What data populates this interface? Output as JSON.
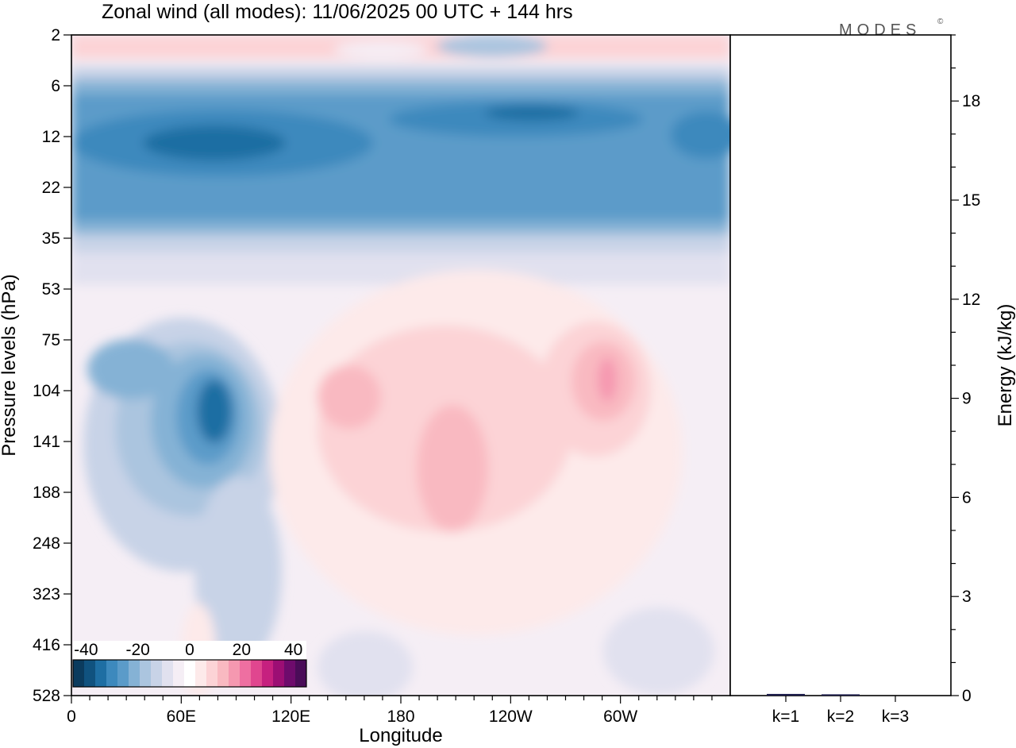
{
  "title": "Zonal wind (all modes):  11/06/2025  00 UTC  + 144 hrs",
  "logo": {
    "text": "MODES",
    "mark": "©"
  },
  "colors": {
    "frame": "#000000",
    "colorbar_bins": [
      "#0b3b5e",
      "#10527f",
      "#1e6ea3",
      "#3d89bd",
      "#5b9bc9",
      "#85b2d5",
      "#abc5df",
      "#c8d3e7",
      "#e1e1ef",
      "#f5eef5",
      "#ffffff",
      "#fdeaea",
      "#fcd3d6",
      "#f9b9c1",
      "#f598b0",
      "#ee6fa1",
      "#e0468f",
      "#c6207f",
      "#9c0e74",
      "#6e0b6c",
      "#4a0c58"
    ]
  },
  "chart_data": [
    {
      "type": "heatmap",
      "title": "Zonal wind (all modes):  11/06/2025  00 UTC  + 144 hrs",
      "xlabel": "Longitude",
      "ylabel": "Pressure levels (hPa)",
      "x_ticks": [
        "0",
        "60E",
        "120E",
        "180",
        "120W",
        "60W"
      ],
      "y_ticks": [
        "2",
        "6",
        "12",
        "22",
        "35",
        "53",
        "75",
        "104",
        "141",
        "188",
        "248",
        "323",
        "416",
        "528"
      ],
      "y_scale": "log (pressure levels)",
      "colorbar": {
        "ticks": [
          "-40",
          "-20",
          "0",
          "20",
          "40"
        ],
        "range": [
          -45,
          45
        ],
        "step": 5,
        "placement": "bottom-left inside plot"
      },
      "features": [
        {
          "region": "2-6 hPa",
          "value_approx": 5,
          "note": "weak positive (pink) with weak negative patches"
        },
        {
          "region": "8-30 hPa",
          "value_approx": -30,
          "note": "broad easterly band, strongest about -35 near 12 hPa"
        },
        {
          "region": "35-53 hPa",
          "value_approx": -5,
          "note": "weak negative transition"
        },
        {
          "region": "90-190 hPa, 60E-100E",
          "value_approx": -35,
          "note": "negative core"
        },
        {
          "region": "90-250 hPa, 130E-100W",
          "value_approx": 10,
          "note": "positive area up to about 15"
        },
        {
          "region": "90-130 hPa, near 70W",
          "value_approx": 20,
          "note": "positive maximum"
        }
      ]
    },
    {
      "type": "bar",
      "categories": [
        "k=1",
        "k=2",
        "k=3"
      ],
      "values": [
        0.05,
        0.03,
        0.0
      ],
      "ylabel": "Energy (kJ/kg)",
      "ylim": [
        0,
        20
      ],
      "y_ticks": [
        "0",
        "3",
        "6",
        "9",
        "12",
        "15",
        "18"
      ]
    }
  ]
}
